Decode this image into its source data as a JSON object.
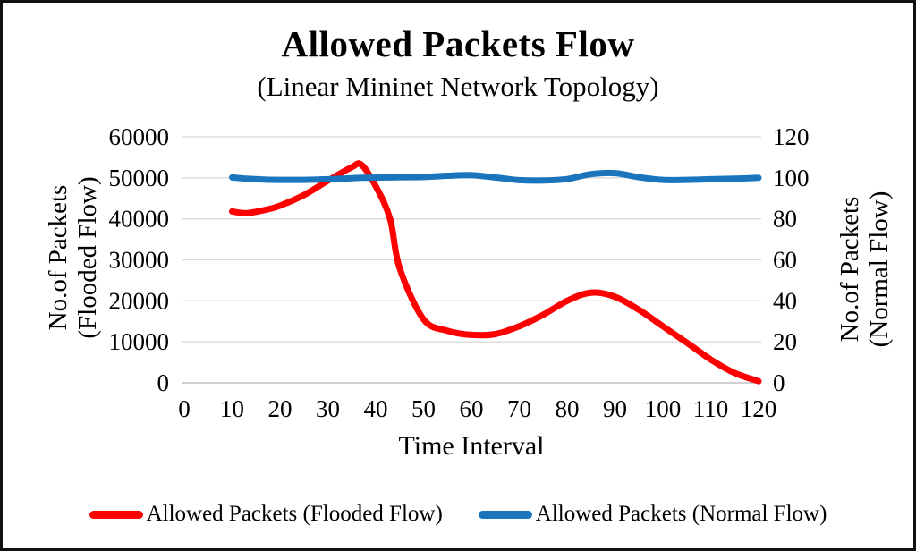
{
  "chart_data": {
    "type": "line",
    "title": "Allowed Packets Flow",
    "subtitle": "(Linear Mininet Network Topology)",
    "xlabel": "Time Interval",
    "xlim": [
      0,
      120
    ],
    "x_ticks": [
      0,
      10,
      20,
      30,
      40,
      50,
      60,
      70,
      80,
      90,
      100,
      110,
      120
    ],
    "left_axis": {
      "label_line1": "No.of Packets",
      "label_line2": "(Flooded Flow)",
      "lim": [
        0,
        60000
      ],
      "ticks": [
        0,
        10000,
        20000,
        30000,
        40000,
        50000,
        60000
      ]
    },
    "right_axis": {
      "label_line1": "No.of Packets",
      "label_line2": "(Normal Flow)",
      "lim": [
        0,
        120
      ],
      "ticks": [
        0,
        20,
        40,
        60,
        80,
        100,
        120
      ]
    },
    "grid": true,
    "gridline_color": "#D9D9D9",
    "baseline_color": "#BFBFBF",
    "legend_position": "bottom",
    "x": [
      10,
      13,
      17,
      20,
      25,
      30,
      35,
      37,
      40,
      43,
      45,
      50,
      55,
      60,
      65,
      70,
      75,
      80,
      85,
      90,
      95,
      100,
      105,
      110,
      115,
      120
    ],
    "series": [
      {
        "name": "Allowed Packets (Flooded Flow)",
        "axis": "left",
        "color": "#FE0000",
        "values": [
          41800,
          41400,
          42200,
          43200,
          45800,
          49300,
          52600,
          53200,
          48000,
          40000,
          28000,
          15500,
          12700,
          11700,
          11900,
          13800,
          16600,
          20000,
          22000,
          21000,
          17800,
          13800,
          9800,
          5700,
          2400,
          400
        ]
      },
      {
        "name": "Allowed Packets (Normal Flow)",
        "axis": "right",
        "color": "#1B75BC",
        "values": [
          100.2,
          99.6,
          99.1,
          99.0,
          99.0,
          99.3,
          99.8,
          100,
          100.1,
          100.2,
          100.3,
          100.4,
          101.0,
          101.3,
          100.2,
          98.9,
          98.7,
          99.4,
          101.8,
          102.3,
          100.3,
          99.0,
          99.0,
          99.3,
          99.6,
          100.0
        ]
      }
    ]
  }
}
